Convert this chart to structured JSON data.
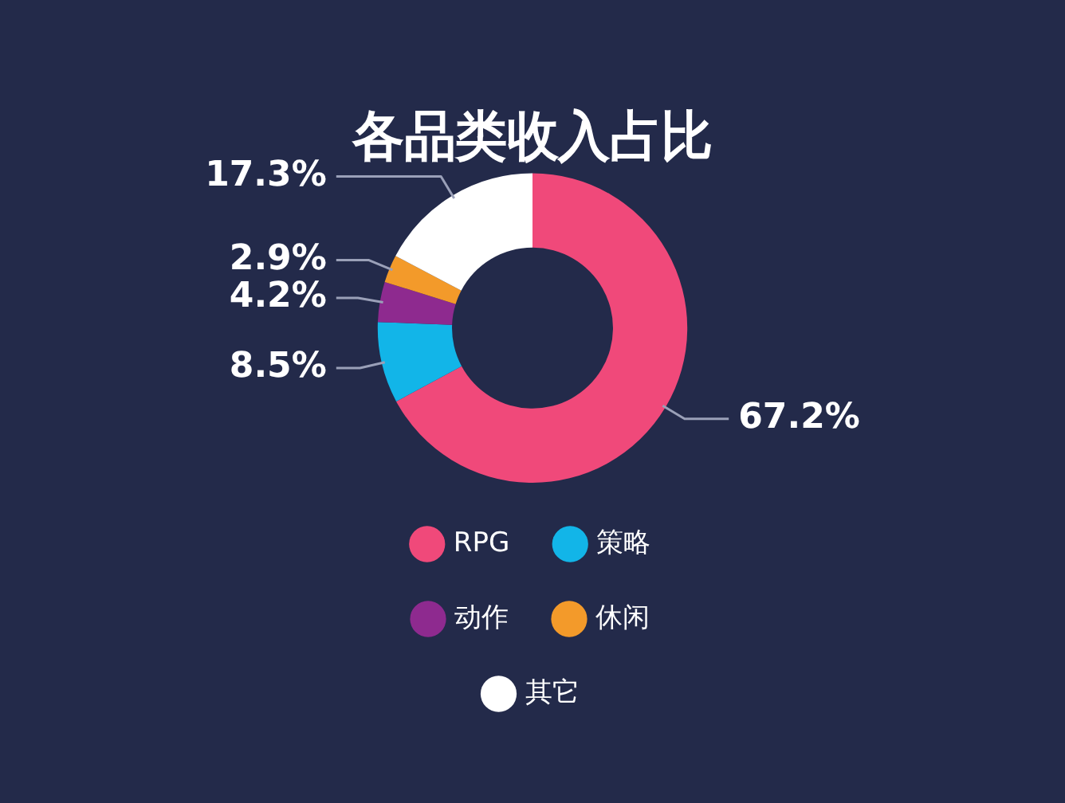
{
  "chart_data": {
    "type": "donut",
    "title": "各品类收入占比",
    "categories": [
      "RPG",
      "策略",
      "动作",
      "休闲",
      "其它"
    ],
    "values": [
      67.2,
      8.5,
      4.2,
      2.9,
      17.3
    ],
    "colors": [
      "#f0497a",
      "#12b5e8",
      "#8e2a8f",
      "#f39a2a",
      "#ffffff"
    ],
    "value_labels": [
      "67.2%",
      "8.5%",
      "4.2%",
      "2.9%",
      "17.3%"
    ],
    "legend": "bottom"
  }
}
